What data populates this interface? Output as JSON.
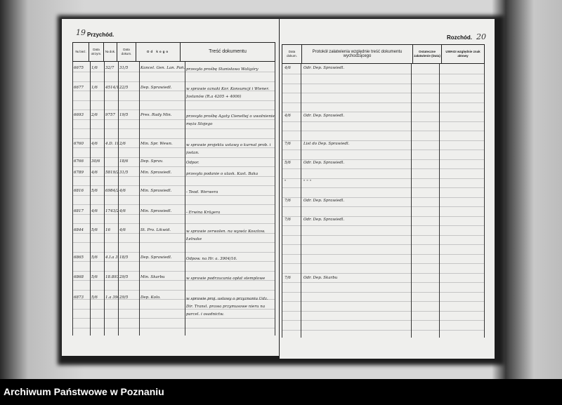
{
  "left_page": {
    "page_number": "19",
    "title": "Przychód.",
    "headers": [
      "№ bież.",
      "Data otrzym.",
      "№ dok.",
      "Data dokum.",
      "Od kogo",
      "Treść dokumentu"
    ],
    "rows": [
      [
        "6675",
        "1/6",
        "32/7",
        "31/5",
        "Kancel. Gen. Lan. Pań.",
        "przesyła prośbę Stanisława Waligóry"
      ],
      [
        "6677",
        "1/6",
        "4514/1057",
        "22/5",
        "Dep. Sprawiedl.",
        "w sprawie oznaki Kor. Konsumcji i Wiener. Jostanów (R.a 4205 + 4006)"
      ],
      [
        "6693",
        "2/6",
        "9757",
        "19/5",
        "Pres. Rady Min.",
        "przesyła prośbę Agaty Cieneltej o uwolnienie męża Stojego"
      ],
      [
        "6760",
        "4/6",
        "4.D. 1871",
        "2/6",
        "Min. Spr. Wewn.",
        "w sprawie projektu ustawy o kurnat prob. i jostan."
      ],
      [
        "6766",
        "30/6",
        "",
        "18/6",
        "Dep. Sprav.",
        "Odpor."
      ],
      [
        "6789",
        "4/6",
        "5819/2",
        "31/5",
        "Min. Sprawiedl.",
        "przesyła podanie o ulask. Kast. Baka"
      ],
      [
        "6816",
        "5/6",
        "6984/2",
        "4/6",
        "Min. Sprawiedl.",
        "- Teod. Werwera"
      ],
      [
        "6817",
        "4/6",
        "1743/2",
        "4/6",
        "Min. Sprawiedl.",
        "- Erwina Krügera"
      ],
      [
        "6844",
        "5/6",
        "16",
        "4/6",
        "St. Pro. Likwid.",
        "w sprawie zerwolen. na wywóz Kosztow. Łelnake"
      ],
      [
        "6865",
        "5/6",
        "4.I.a 3904/2",
        "18/5",
        "Dep. Sprawiedl.",
        "Odpow. na Hr. a. 3904/16."
      ],
      [
        "6868",
        "5/6",
        "18.893/2",
        "29/5",
        "Min. Skarbu",
        "w sprawie podrzucania opłat stemplowe"
      ],
      [
        "6873",
        "5/6",
        "1.a 3903/2",
        "29/5",
        "Dep. Kolo.",
        "w sprawie proj. ustawy o przyznaniu Udz. Dir. Transl. prawa przymusowe nieru na parcel. i osadnictw."
      ]
    ]
  },
  "right_page": {
    "page_number": "20",
    "title": "Rozchód.",
    "headers": [
      "Data dokum.",
      "Protokół załatwienia względnie treść dokumentu wychodzącego",
      "Ostateczne załatwienie (Data)",
      "UWAGI względnie znak aktowy"
    ],
    "rows": [
      [
        "4/6",
        "Odr. Dep. Sprawiedl."
      ],
      [
        "4/6",
        "Odr. Dep. Sprawiedl."
      ],
      [
        "7/6",
        "List do Dep. Sprawiedl."
      ],
      [
        "5/6",
        "Odr. Dep. Sprawiedl."
      ],
      [
        "\"",
        "\"   \"   \""
      ],
      [
        "7/6",
        "Odr. Dep. Sprawiedl."
      ],
      [
        "7/6",
        "Odr. Dep. Sprawiedl."
      ],
      [
        "7/6",
        "Odr. Dep. Skarbu"
      ]
    ]
  },
  "footer": {
    "text": "Archiwum Państwowe w Poznaniu"
  }
}
